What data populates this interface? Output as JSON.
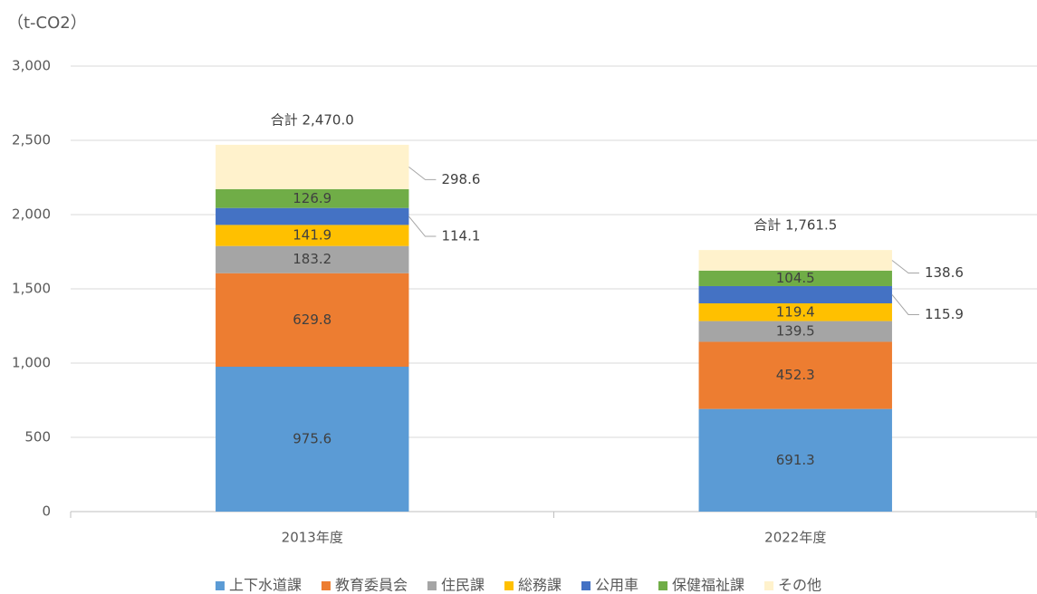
{
  "chart_data": {
    "type": "stacked_bar",
    "y_axis_label": "（t-CO2）",
    "categories": [
      "2013年度",
      "2022年度"
    ],
    "series": [
      {
        "name": "上下水道課",
        "color": "#5b9bd5",
        "values": [
          975.6,
          691.3
        ]
      },
      {
        "name": "教育委員会",
        "color": "#ed7d31",
        "values": [
          629.8,
          452.3
        ]
      },
      {
        "name": "住民課",
        "color": "#a5a5a5",
        "values": [
          183.2,
          139.5
        ]
      },
      {
        "name": "総務課",
        "color": "#ffc000",
        "values": [
          141.9,
          119.4
        ]
      },
      {
        "name": "公用車",
        "color": "#4472c4",
        "values": [
          114.1,
          115.9
        ]
      },
      {
        "name": "保健福祉課",
        "color": "#70ad47",
        "values": [
          126.9,
          104.5
        ]
      },
      {
        "name": "その他",
        "color": "#fff2cc",
        "values": [
          298.6,
          138.6
        ]
      }
    ],
    "totals": {
      "values": [
        2470.0,
        1761.5
      ],
      "value_labels": [
        "合計 2,470.0",
        "合計 1,761.5"
      ]
    },
    "ylim": [
      0,
      3000
    ],
    "yticks": [
      0,
      500,
      {
        "value": 1000,
        "label": "1,000"
      },
      {
        "value": 1500,
        "label": "1,500"
      },
      {
        "value": 2000,
        "label": "2,000"
      },
      {
        "value": 2500,
        "label": "2,500"
      },
      {
        "value": 3000,
        "label": "3,000"
      }
    ],
    "grid": true,
    "legend": "bottom"
  }
}
